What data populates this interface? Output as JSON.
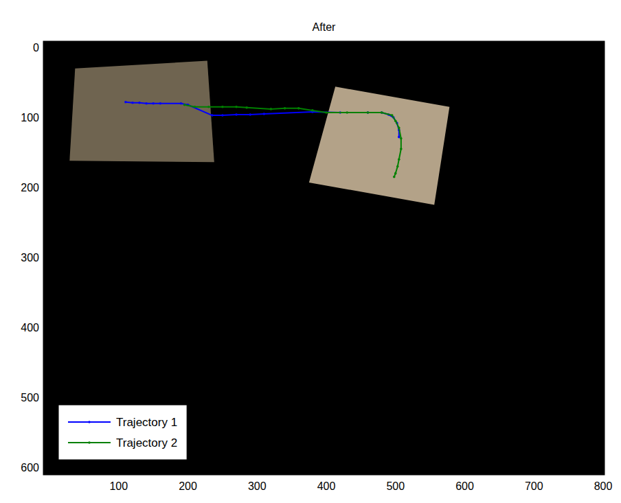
{
  "chart_data": {
    "type": "line",
    "title": "After",
    "xlim": [
      -9,
      802
    ],
    "ylim": [
      611,
      -9
    ],
    "xticks": [
      100,
      200,
      300,
      400,
      500,
      600,
      700,
      800
    ],
    "yticks": [
      0,
      100,
      200,
      300,
      400,
      500,
      600
    ],
    "grid": false,
    "legend": "lower left",
    "marker": "dot",
    "images": [
      {
        "corners": [
          [
            37,
            30
          ],
          [
            228,
            19
          ],
          [
            238,
            164
          ],
          [
            29,
            162
          ]
        ],
        "color": "#6f6450"
      },
      {
        "corners": [
          [
            413,
            56
          ],
          [
            578,
            85
          ],
          [
            556,
            225
          ],
          [
            375,
            193
          ]
        ],
        "color": "#b3a288"
      }
    ],
    "series": [
      {
        "name": "Trajectory 1",
        "color": "#0000ff",
        "x": [
          110,
          120,
          130,
          140,
          150,
          160,
          190,
          200,
          235,
          250,
          270,
          290,
          310,
          380,
          420,
          460,
          480,
          490,
          497,
          502,
          505,
          505
        ],
        "values": [
          78,
          79,
          79,
          80,
          80,
          80,
          80,
          82,
          97,
          97,
          96,
          96,
          95,
          92,
          93,
          93,
          93,
          96,
          100,
          108,
          118,
          128
        ]
      },
      {
        "name": "Trajectory 2",
        "color": "#008000",
        "x": [
          195,
          210,
          230,
          250,
          270,
          285,
          320,
          340,
          360,
          380,
          400,
          430,
          460,
          480,
          495,
          500,
          505,
          508,
          508,
          505,
          503,
          500,
          498
        ],
        "values": [
          82,
          85,
          85,
          85,
          85,
          86,
          88,
          87,
          87,
          90,
          93,
          93,
          93,
          93,
          97,
          105,
          115,
          130,
          145,
          160,
          170,
          180,
          185
        ]
      }
    ]
  }
}
